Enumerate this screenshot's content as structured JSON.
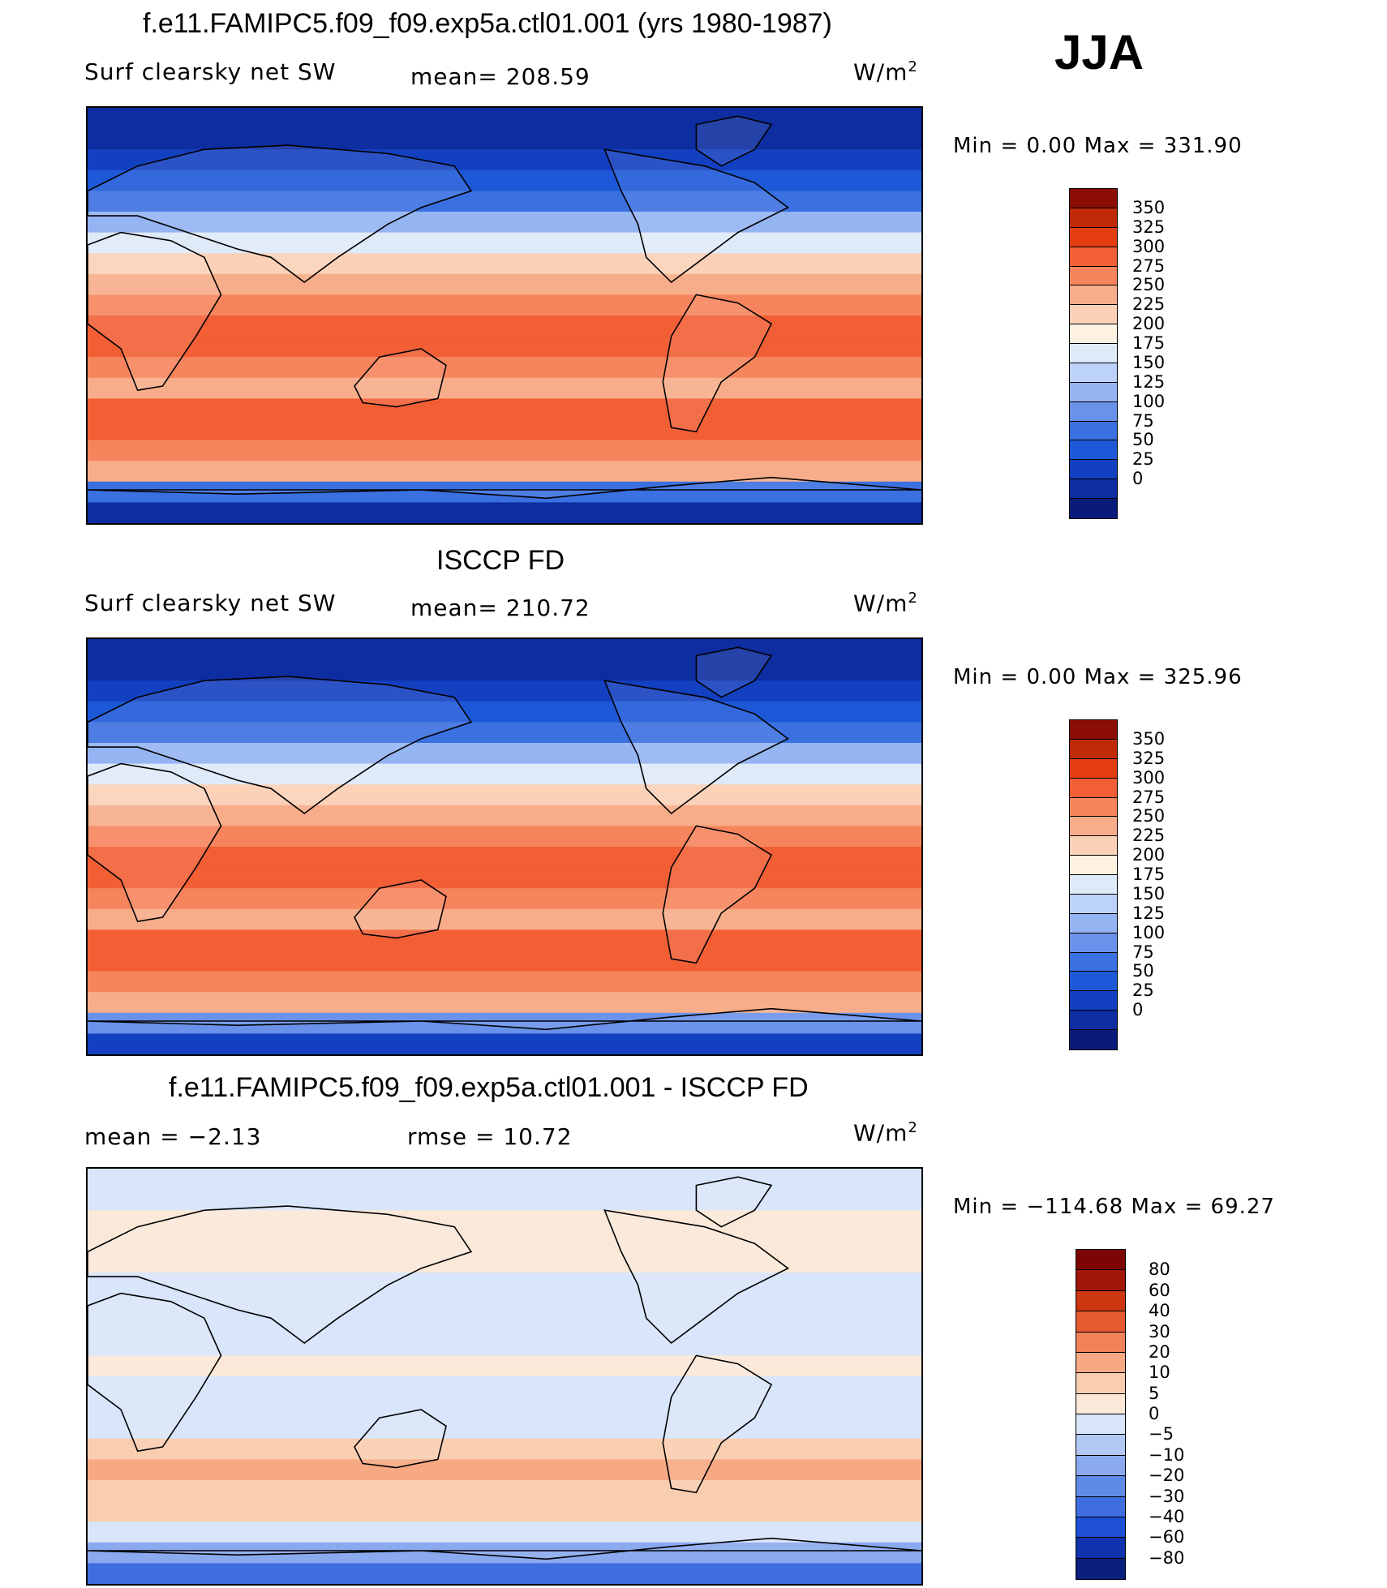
{
  "season": "JJA",
  "units_text": "W/m",
  "units_sup": "2",
  "colors": {
    "abs_scale": [
      "#0a1a7a",
      "#0d2da0",
      "#1340c0",
      "#1c58d8",
      "#3a70e0",
      "#6a92ea",
      "#95b4f2",
      "#bcd2f8",
      "#dfeaf9",
      "#fdf1e2",
      "#fbd2b8",
      "#f8ad8a",
      "#f6855d",
      "#f25f35",
      "#e43d12",
      "#c12a08",
      "#8b0d03"
    ],
    "diff_scale": [
      "#0b1f7f",
      "#0e33ad",
      "#1e4fd6",
      "#3e6ee0",
      "#5f8be6",
      "#8aa9ef",
      "#b2c9f5",
      "#d8e5fa",
      "#fbe8d8",
      "#f9cdb0",
      "#f6a983",
      "#f1825a",
      "#e65a30",
      "#cc3610",
      "#a01608",
      "#7d0503"
    ],
    "land_abs": "#e8e4e0",
    "coast": "#000000"
  },
  "chart_data": [
    {
      "type": "heatmap",
      "title": "f.e11.FAMIPC5.f09_f09.exp5a.ctl01.001 (yrs 1980-1987)",
      "left_label": "Surf  clearsky  net  SW",
      "mean_text": "mean=  208.59",
      "mean": 208.59,
      "minmax_text": "Min  =      0.00  Max  =  331.90",
      "min": 0.0,
      "max": 331.9,
      "levels": [
        "350",
        "325",
        "300",
        "275",
        "250",
        "225",
        "200",
        "175",
        "150",
        "125",
        "100",
        "75",
        "50",
        "25",
        "0"
      ],
      "lat_profile": [
        0,
        0,
        25,
        50,
        75,
        125,
        175,
        225,
        250,
        275,
        300,
        300,
        275,
        250,
        300,
        300,
        275,
        250,
        75,
        0
      ]
    },
    {
      "type": "heatmap",
      "title": "ISCCP FD",
      "left_label": "Surf  clearsky  net  SW",
      "mean_text": "mean=  210.72",
      "mean": 210.72,
      "minmax_text": "Min  =      0.00  Max  =  325.96",
      "min": 0.0,
      "max": 325.96,
      "levels": [
        "350",
        "325",
        "300",
        "275",
        "250",
        "225",
        "200",
        "175",
        "150",
        "125",
        "100",
        "75",
        "50",
        "25",
        "0"
      ],
      "lat_profile": [
        0,
        0,
        25,
        50,
        75,
        125,
        175,
        225,
        250,
        275,
        300,
        300,
        275,
        250,
        300,
        300,
        275,
        250,
        100,
        25
      ]
    },
    {
      "type": "heatmap",
      "title": "f.e11.FAMIPC5.f09_f09.exp5a.ctl01.001 - ISCCP FD",
      "left_label": "mean  =    −2.13",
      "rmse_text": "rmse  =    10.72",
      "mean": -2.13,
      "rmse": 10.72,
      "minmax_text": "Min  = −114.68  Max  =    69.27",
      "min": -114.68,
      "max": 69.27,
      "levels": [
        "80",
        "60",
        "40",
        "30",
        "20",
        "10",
        "5",
        "0",
        "−5",
        "−10",
        "−20",
        "−30",
        "−40",
        "−60",
        "−80"
      ],
      "lat_profile": [
        -5,
        -5,
        0,
        3,
        2,
        -3,
        -5,
        -5,
        -3,
        0,
        -5,
        -3,
        -5,
        5,
        10,
        5,
        5,
        -5,
        -20,
        -40
      ]
    }
  ]
}
